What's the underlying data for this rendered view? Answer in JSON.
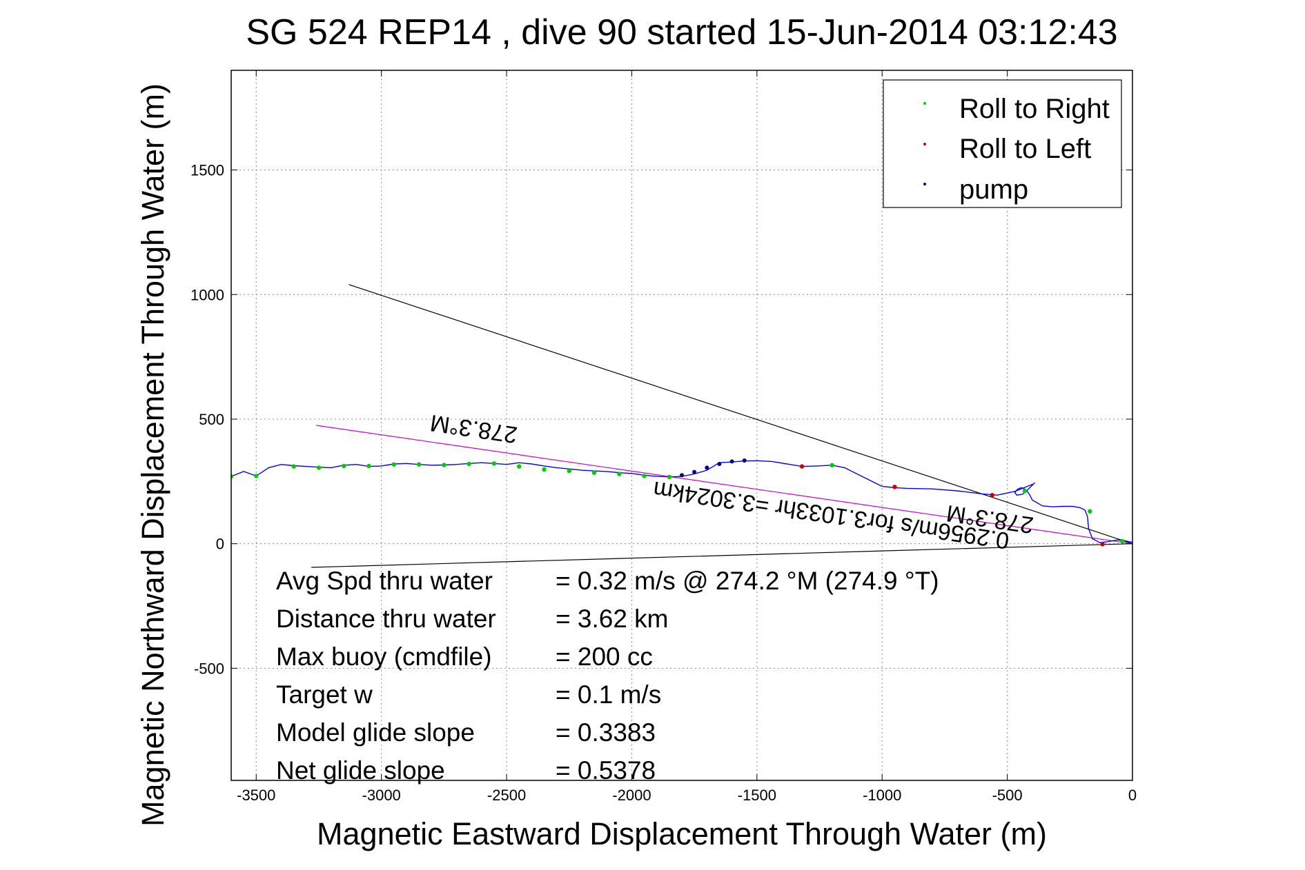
{
  "chart_data": {
    "type": "line",
    "title": "SG 524   REP14  , dive 90 started 15-Jun-2014 03:12:43",
    "xlabel": "Magnetic Eastward Displacement Through Water (m)",
    "ylabel": "Magnetic Northward Displacement Through Water (m)",
    "xlim": [
      -3600,
      0
    ],
    "ylim": [
      -950,
      1900
    ],
    "xticks": [
      -3500,
      -3000,
      -2500,
      -2000,
      -1500,
      -1000,
      -500,
      0
    ],
    "yticks": [
      -500,
      0,
      500,
      1000,
      1500
    ],
    "grid": true,
    "legend_position": "top-right",
    "legend": [
      "Roll to Right",
      "Roll to Left",
      "pump"
    ],
    "colors": {
      "track": "#0000ff",
      "roll_right": "#00cc00",
      "roll_left": "#cc0000",
      "pump": "#000088",
      "guide": "#000000",
      "heading": "#cc00cc"
    },
    "track": {
      "x": [
        0,
        -30,
        -60,
        -100,
        -130,
        -160,
        -175,
        -180,
        -190,
        -210,
        -240,
        -280,
        -320,
        -360,
        -400,
        -410,
        -420,
        -430,
        -445,
        -460,
        -470,
        -462,
        -440,
        -420,
        -400,
        -390,
        -395,
        -420,
        -470,
        -540,
        -600,
        -700,
        -800,
        -900,
        -950,
        -1000,
        -1050,
        -1100,
        -1150,
        -1200,
        -1260,
        -1320,
        -1380,
        -1440,
        -1500,
        -1550,
        -1600,
        -1650,
        -1700,
        -1750,
        -1800,
        -1850,
        -1900,
        -1950,
        -2000,
        -2050,
        -2100,
        -2150,
        -2200,
        -2250,
        -2300,
        -2350,
        -2400,
        -2450,
        -2500,
        -2550,
        -2600,
        -2650,
        -2700,
        -2750,
        -2800,
        -2850,
        -2900,
        -2950,
        -3000,
        -3050,
        -3100,
        -3150,
        -3200,
        -3250,
        -3300,
        -3350,
        -3400,
        -3450,
        -3500,
        -3550,
        -3600
      ],
      "y": [
        5,
        12,
        15,
        8,
        4,
        20,
        60,
        110,
        135,
        145,
        150,
        150,
        148,
        152,
        175,
        195,
        210,
        220,
        225,
        218,
        205,
        195,
        198,
        215,
        235,
        245,
        240,
        230,
        210,
        195,
        200,
        212,
        220,
        222,
        225,
        230,
        255,
        280,
        305,
        315,
        312,
        310,
        320,
        330,
        333,
        332,
        328,
        325,
        295,
        280,
        270,
        268,
        270,
        275,
        282,
        285,
        290,
        292,
        295,
        300,
        305,
        312,
        320,
        325,
        318,
        322,
        325,
        322,
        318,
        316,
        315,
        318,
        322,
        320,
        312,
        310,
        318,
        315,
        305,
        307,
        310,
        313,
        318,
        305,
        272,
        290,
        270
      ]
    },
    "roll_right_points": {
      "x": [
        -40,
        -170,
        -430,
        -1200,
        -1850,
        -1950,
        -2050,
        -2150,
        -2250,
        -2350,
        -2450,
        -2550,
        -2650,
        -2750,
        -2850,
        -2950,
        -3050,
        -3150,
        -3250,
        -3350,
        -3500,
        -3600
      ],
      "y": [
        10,
        130,
        212,
        315,
        268,
        272,
        280,
        285,
        292,
        298,
        310,
        322,
        320,
        316,
        318,
        318,
        312,
        312,
        305,
        310,
        272,
        270
      ]
    },
    "roll_left_points": {
      "x": [
        -120,
        -560,
        -950,
        -1320
      ],
      "y": [
        -2,
        195,
        228,
        310
      ]
    },
    "pump_points": {
      "x": [
        -1550,
        -1600,
        -1650,
        -1700,
        -1750,
        -1800
      ],
      "y": [
        334,
        330,
        320,
        305,
        288,
        275
      ]
    },
    "guide_lines": [
      {
        "x": [
          0,
          -3130
        ],
        "y": [
          0,
          1040
        ]
      },
      {
        "x": [
          0,
          -3280
        ],
        "y": [
          0,
          -95
        ]
      }
    ],
    "heading_line": {
      "x": [
        0,
        -3260
      ],
      "y": [
        0,
        475
      ]
    },
    "annotations": {
      "heading_upper": "278.3°M",
      "speed_line": "0.2956m/s for3.1033hr =3.3024km",
      "heading_lower": "278.3°M"
    },
    "stats": [
      {
        "label": "Avg Spd thru water",
        "value": "=  0.32 m/s @ 274.2 °M (274.9 °T)"
      },
      {
        "label": "Distance thru water",
        "value": "=  3.62 km"
      },
      {
        "label": "Max buoy (cmdfile)",
        "value": "= 200 cc"
      },
      {
        "label": "Target w",
        "value": "= 0.1 m/s"
      },
      {
        "label": "Model glide slope",
        "value": "= 0.3383"
      },
      {
        "label": "Net glide slope",
        "value": "= 0.5378"
      }
    ]
  }
}
